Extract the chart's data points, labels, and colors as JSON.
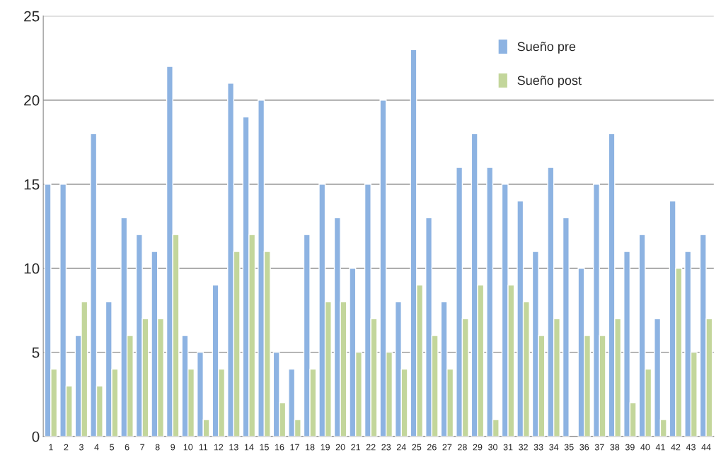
{
  "chart_data": {
    "type": "bar",
    "categories": [
      "1",
      "2",
      "3",
      "4",
      "5",
      "6",
      "7",
      "8",
      "9",
      "10",
      "11",
      "12",
      "13",
      "14",
      "15",
      "16",
      "17",
      "18",
      "19",
      "20",
      "21",
      "22",
      "23",
      "24",
      "25",
      "26",
      "27",
      "28",
      "29",
      "30",
      "31",
      "32",
      "33",
      "34",
      "35",
      "36",
      "37",
      "38",
      "39",
      "40",
      "41",
      "42",
      "43",
      "44"
    ],
    "series": [
      {
        "name": "Sueño pre",
        "color": "#8db3e2",
        "values": [
          15,
          15,
          6,
          18,
          8,
          13,
          12,
          11,
          22,
          6,
          5,
          9,
          21,
          19,
          20,
          5,
          4,
          12,
          15,
          13,
          10,
          15,
          20,
          8,
          23,
          13,
          8,
          16,
          18,
          16,
          15,
          14,
          11,
          16,
          13,
          10,
          15,
          18,
          11,
          12,
          7,
          14,
          11,
          12
        ]
      },
      {
        "name": "Sueño post",
        "color": "#c3d69b",
        "values": [
          4,
          3,
          8,
          3,
          4,
          6,
          7,
          7,
          12,
          4,
          1,
          4,
          11,
          12,
          11,
          2,
          1,
          4,
          8,
          8,
          5,
          7,
          5,
          4,
          9,
          6,
          4,
          7,
          9,
          1,
          9,
          8,
          6,
          7,
          null,
          6,
          6,
          7,
          2,
          4,
          1,
          10,
          5,
          7
        ]
      }
    ],
    "ylim": [
      0,
      25
    ],
    "yticks": [
      0,
      5,
      10,
      15,
      20,
      25
    ],
    "grid": "y",
    "legend": "top right"
  }
}
